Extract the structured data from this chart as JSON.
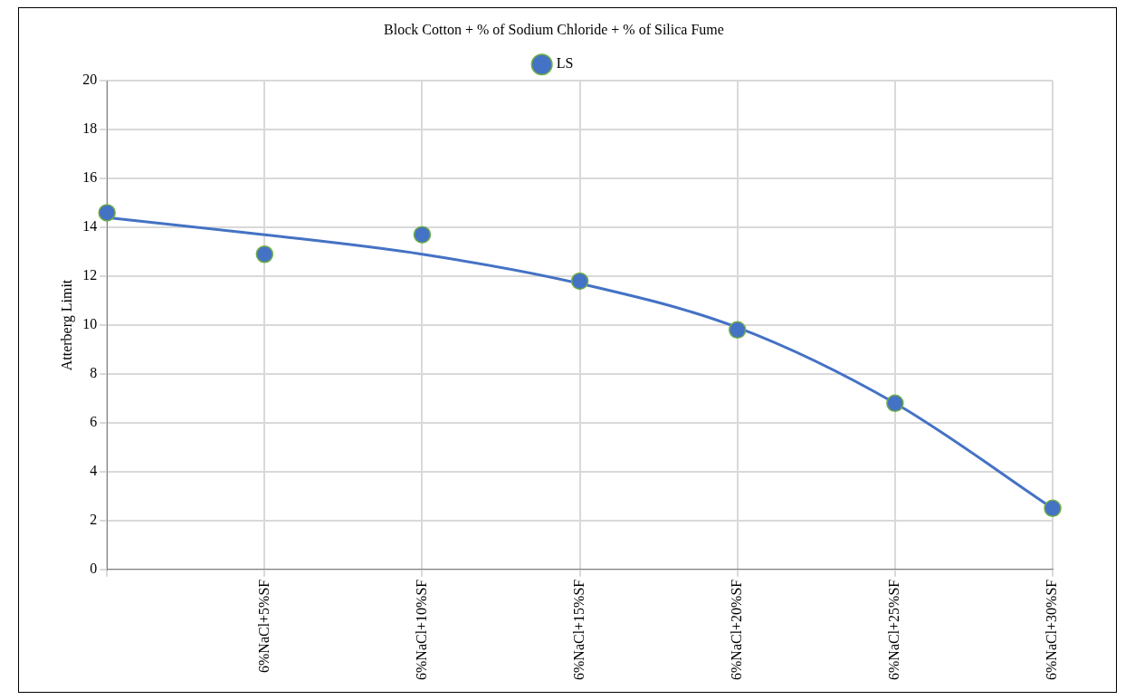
{
  "chart_data": {
    "type": "scatter",
    "title": "Block Cotton + % of Sodium Chloride + % of Silica Fume",
    "ylabel": "Atterberg Limit",
    "categories": [
      null,
      "6%NaCl+5%SF",
      "6%NaCl+10%SF",
      "6%NaCl+15%SF",
      "6%NaCl+20%SF",
      "6%NaCl+25%SF",
      "6%NaCl+30%SF"
    ],
    "series": [
      {
        "name": "LS",
        "color": "#4472c4",
        "marker": "circle",
        "values": [
          14.6,
          12.9,
          13.7,
          11.8,
          9.8,
          6.8,
          2.5
        ]
      },
      {
        "type": "line",
        "color": "#4472c4",
        "marker": "none",
        "values": [
          14.4,
          13.7,
          12.9,
          11.7,
          9.9,
          6.8,
          2.5
        ]
      }
    ],
    "ylim": [
      0,
      20
    ],
    "yticks": [
      0,
      2,
      4,
      6,
      8,
      10,
      12,
      14,
      16,
      18,
      20
    ],
    "grid": true,
    "legend": "top"
  }
}
